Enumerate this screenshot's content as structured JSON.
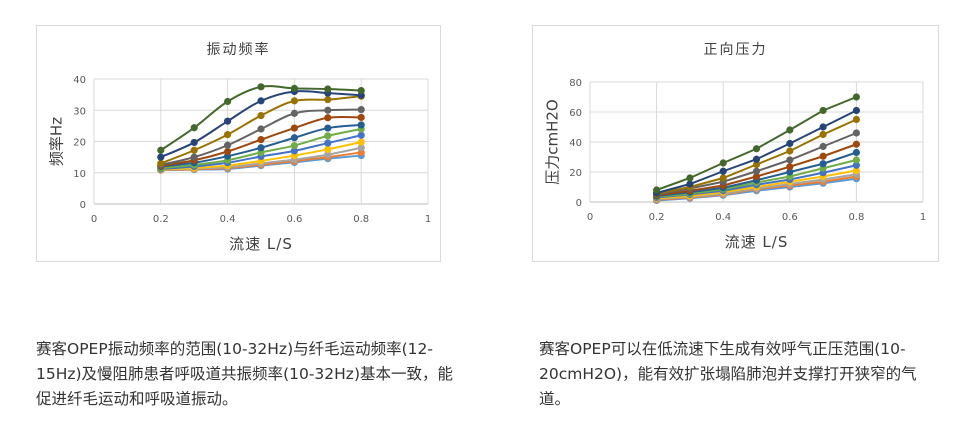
{
  "chart_data": [
    {
      "type": "line",
      "title": "振动频率",
      "xlabel": "流速  L/S",
      "ylabel": "频率Hz",
      "xlim": [
        0,
        1
      ],
      "ylim": [
        0,
        40
      ],
      "xticks": [
        "0",
        "0.2",
        "0.4",
        "0.6",
        "0.8",
        "1"
      ],
      "yticks": [
        "0",
        "10",
        "20",
        "30",
        "40"
      ],
      "grid": true,
      "smooth": true,
      "markers": true,
      "x": [
        0.2,
        0.3,
        0.4,
        0.5,
        0.6,
        0.7,
        0.8
      ],
      "series": [
        {
          "color": "#5B9BD5",
          "values": [
            10.8,
            11,
            11.2,
            12.3,
            13.3,
            14.5,
            15.5
          ]
        },
        {
          "color": "#ED7D31",
          "values": [
            10.9,
            11.1,
            11.5,
            12.6,
            13.7,
            15,
            16.5
          ]
        },
        {
          "color": "#A5A5A5",
          "values": [
            11,
            11.3,
            11.8,
            13,
            14.2,
            15.8,
            18
          ]
        },
        {
          "color": "#FFC000",
          "values": [
            11,
            11.5,
            12.3,
            13.8,
            15.5,
            17.5,
            19.8
          ]
        },
        {
          "color": "#4472C4",
          "values": [
            11.2,
            12,
            13.2,
            15.2,
            17,
            19.5,
            22
          ]
        },
        {
          "color": "#70AD47",
          "values": [
            11.5,
            12.5,
            14,
            16.5,
            18.7,
            21.8,
            24
          ]
        },
        {
          "color": "#255E91",
          "values": [
            12,
            13.2,
            15.3,
            18,
            21.2,
            24.3,
            25.3
          ]
        },
        {
          "color": "#9E480E",
          "values": [
            12.2,
            14,
            16.8,
            20.6,
            24.3,
            27.6,
            27.7
          ]
        },
        {
          "color": "#636363",
          "values": [
            12.5,
            15,
            18.8,
            24,
            29,
            30,
            30.2
          ]
        },
        {
          "color": "#997300",
          "values": [
            13,
            17.2,
            22.2,
            28.3,
            33,
            33.4,
            34.5
          ]
        },
        {
          "color": "#264478",
          "values": [
            15,
            19.7,
            26.5,
            33,
            36,
            35.5,
            34.8
          ]
        },
        {
          "color": "#43682B",
          "values": [
            17.2,
            24.4,
            32.8,
            37.5,
            37,
            36.8,
            36.3
          ]
        }
      ]
    },
    {
      "type": "line",
      "title": "正向压力",
      "xlabel": "流速  L/S",
      "ylabel": "压力cmH2O",
      "xlim": [
        0,
        1
      ],
      "ylim": [
        0,
        80
      ],
      "xticks": [
        "0",
        "0.2",
        "0.4",
        "0.6",
        "0.8",
        "1"
      ],
      "yticks": [
        "0",
        "20",
        "40",
        "60",
        "80"
      ],
      "grid": true,
      "smooth": false,
      "markers": true,
      "x": [
        0.2,
        0.3,
        0.4,
        0.5,
        0.6,
        0.7,
        0.8
      ],
      "series": [
        {
          "color": "#5B9BD5",
          "values": [
            1,
            2.5,
            4.5,
            7.5,
            10,
            12.5,
            15.5
          ]
        },
        {
          "color": "#ED7D31",
          "values": [
            1.5,
            3,
            5,
            8.5,
            11,
            13.5,
            17
          ]
        },
        {
          "color": "#A5A5A5",
          "values": [
            2,
            3.5,
            5.5,
            9,
            12,
            15,
            18.5
          ]
        },
        {
          "color": "#FFC000",
          "values": [
            2.5,
            4,
            6.5,
            10,
            13.5,
            17,
            21
          ]
        },
        {
          "color": "#4472C4",
          "values": [
            3,
            5,
            7.5,
            11.5,
            15,
            19.5,
            24.5
          ]
        },
        {
          "color": "#70AD47",
          "values": [
            3.5,
            5.5,
            8.5,
            13,
            17,
            22.5,
            28
          ]
        },
        {
          "color": "#255E91",
          "values": [
            4,
            6.5,
            9.5,
            14.5,
            20,
            25.5,
            33
          ]
        },
        {
          "color": "#9E480E",
          "values": [
            4.5,
            7.5,
            11,
            17,
            23.5,
            30.5,
            38.5
          ]
        },
        {
          "color": "#636363",
          "values": [
            5,
            9,
            13.5,
            20.5,
            28,
            37,
            46
          ]
        },
        {
          "color": "#997300",
          "values": [
            5.5,
            10,
            16,
            25,
            34,
            45,
            55
          ]
        },
        {
          "color": "#264478",
          "values": [
            6,
            12,
            20.5,
            28.5,
            39,
            50,
            61
          ]
        },
        {
          "color": "#43682B",
          "values": [
            8,
            16,
            26,
            35.5,
            48,
            61,
            70
          ]
        }
      ]
    }
  ],
  "captions": {
    "left": "赛客OPEP振动频率的范围(10-32Hz)与纤毛运动频率(12-15Hz)及慢阻肺患者呼吸道共振频率(10-32Hz)基本一致，能促进纤毛运动和呼吸道振动。",
    "right": "赛客OPEP可以在低流速下生成有效呼气正压范围(10-20cmH2O)，能有效扩张塌陷肺泡并支撑打开狭窄的气道。"
  }
}
